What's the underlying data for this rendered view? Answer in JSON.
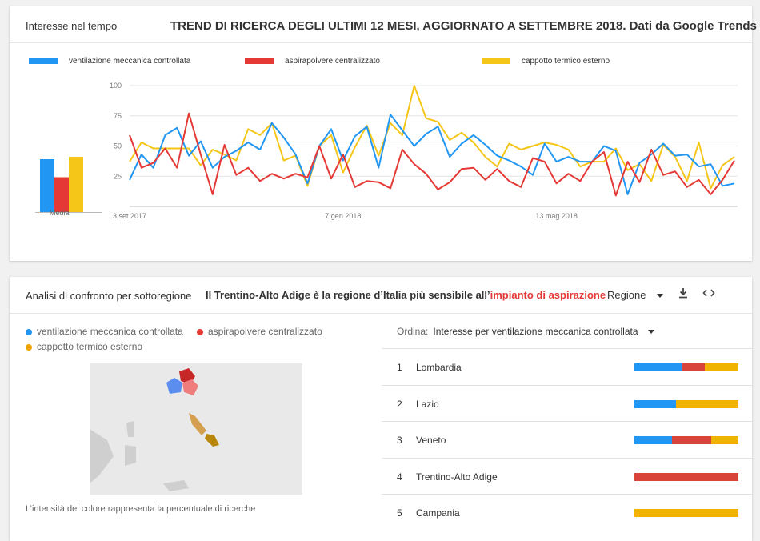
{
  "colors": {
    "blue": "#2196f3",
    "red": "#e53935",
    "yellow": "#f5c518"
  },
  "card1": {
    "left_label": "Interesse nel tempo",
    "title": "TREND DI RICERCA DEGLI ULTIMI 12 MESI, AGGIORNATO A SETTEMBRE 2018. Dati da Google Trends",
    "legend": [
      "ventilazione meccanica controllata",
      "aspirapolvere centralizzato",
      "cappotto termico esterno"
    ],
    "media_label": "Media"
  },
  "chart_data": [
    {
      "type": "bar",
      "categories": [
        "Media"
      ],
      "series": [
        {
          "name": "ventilazione meccanica controllata",
          "values": [
            44
          ]
        },
        {
          "name": "aspirapolvere centralizzato",
          "values": [
            29
          ]
        },
        {
          "name": "cappotto termico esterno",
          "values": [
            46
          ]
        }
      ],
      "ylim": [
        0,
        100
      ]
    },
    {
      "type": "line",
      "yticks": [
        100,
        75,
        50,
        25
      ],
      "ylim": [
        0,
        100
      ],
      "xtick_labels": [
        "3 set 2017",
        "7 gen 2018",
        "13 mag 2018"
      ],
      "xtick_index": [
        0,
        18,
        36
      ],
      "grid": true,
      "series": [
        {
          "name": "ventilazione meccanica controllata",
          "values": [
            22,
            43,
            32,
            59,
            65,
            42,
            54,
            32,
            41,
            46,
            53,
            47,
            69,
            57,
            43,
            19,
            50,
            64,
            38,
            58,
            66,
            32,
            76,
            63,
            50,
            60,
            66,
            41,
            52,
            59,
            51,
            42,
            38,
            33,
            26,
            52,
            37,
            41,
            37,
            37,
            50,
            46,
            10,
            36,
            43,
            52,
            42,
            43,
            33,
            35,
            17,
            19
          ]
        },
        {
          "name": "aspirapolvere centralizzato",
          "values": [
            59,
            32,
            36,
            48,
            32,
            77,
            43,
            10,
            51,
            26,
            32,
            21,
            27,
            23,
            27,
            24,
            50,
            23,
            43,
            16,
            21,
            20,
            15,
            47,
            35,
            27,
            14,
            20,
            31,
            32,
            22,
            31,
            21,
            16,
            40,
            37,
            19,
            27,
            21,
            37,
            45,
            9,
            37,
            20,
            47,
            26,
            29,
            16,
            22,
            10,
            22,
            38
          ]
        },
        {
          "name": "cappotto termico esterno",
          "values": [
            37,
            53,
            48,
            48,
            48,
            48,
            34,
            47,
            43,
            38,
            64,
            59,
            69,
            38,
            42,
            17,
            50,
            59,
            28,
            49,
            67,
            42,
            69,
            59,
            100,
            73,
            70,
            55,
            61,
            53,
            41,
            33,
            52,
            47,
            50,
            53,
            51,
            47,
            33,
            37,
            37,
            48,
            30,
            35,
            21,
            51,
            41,
            21,
            53,
            15,
            34,
            41
          ]
        }
      ]
    }
  ],
  "card2": {
    "left_label": "Analisi di confronto per sottoregione",
    "title_prefix": "Il Trentino-Alto Adige è la regione d’Italia più sensibile all’",
    "title_highlight": "impianto di aspirazione",
    "region_label": "Regione",
    "legend": [
      "ventilazione meccanica controllata",
      "aspirapolvere centralizzato",
      "cappotto termico esterno"
    ],
    "footnote": "L’intensità del colore rappresenta la percentuale di ricerche",
    "ordina_label": "Ordina:",
    "ordina_value": "Interesse per ventilazione meccanica controllata",
    "rows": [
      {
        "rank": "1",
        "name": "Lombardia",
        "shares": [
          46,
          22,
          32
        ]
      },
      {
        "rank": "2",
        "name": "Lazio",
        "shares": [
          40,
          0,
          60
        ]
      },
      {
        "rank": "3",
        "name": "Veneto",
        "shares": [
          36,
          38,
          26
        ]
      },
      {
        "rank": "4",
        "name": "Trentino-Alto Adige",
        "shares": [
          0,
          100,
          0
        ]
      },
      {
        "rank": "5",
        "name": "Campania",
        "shares": [
          0,
          0,
          100
        ]
      }
    ]
  }
}
